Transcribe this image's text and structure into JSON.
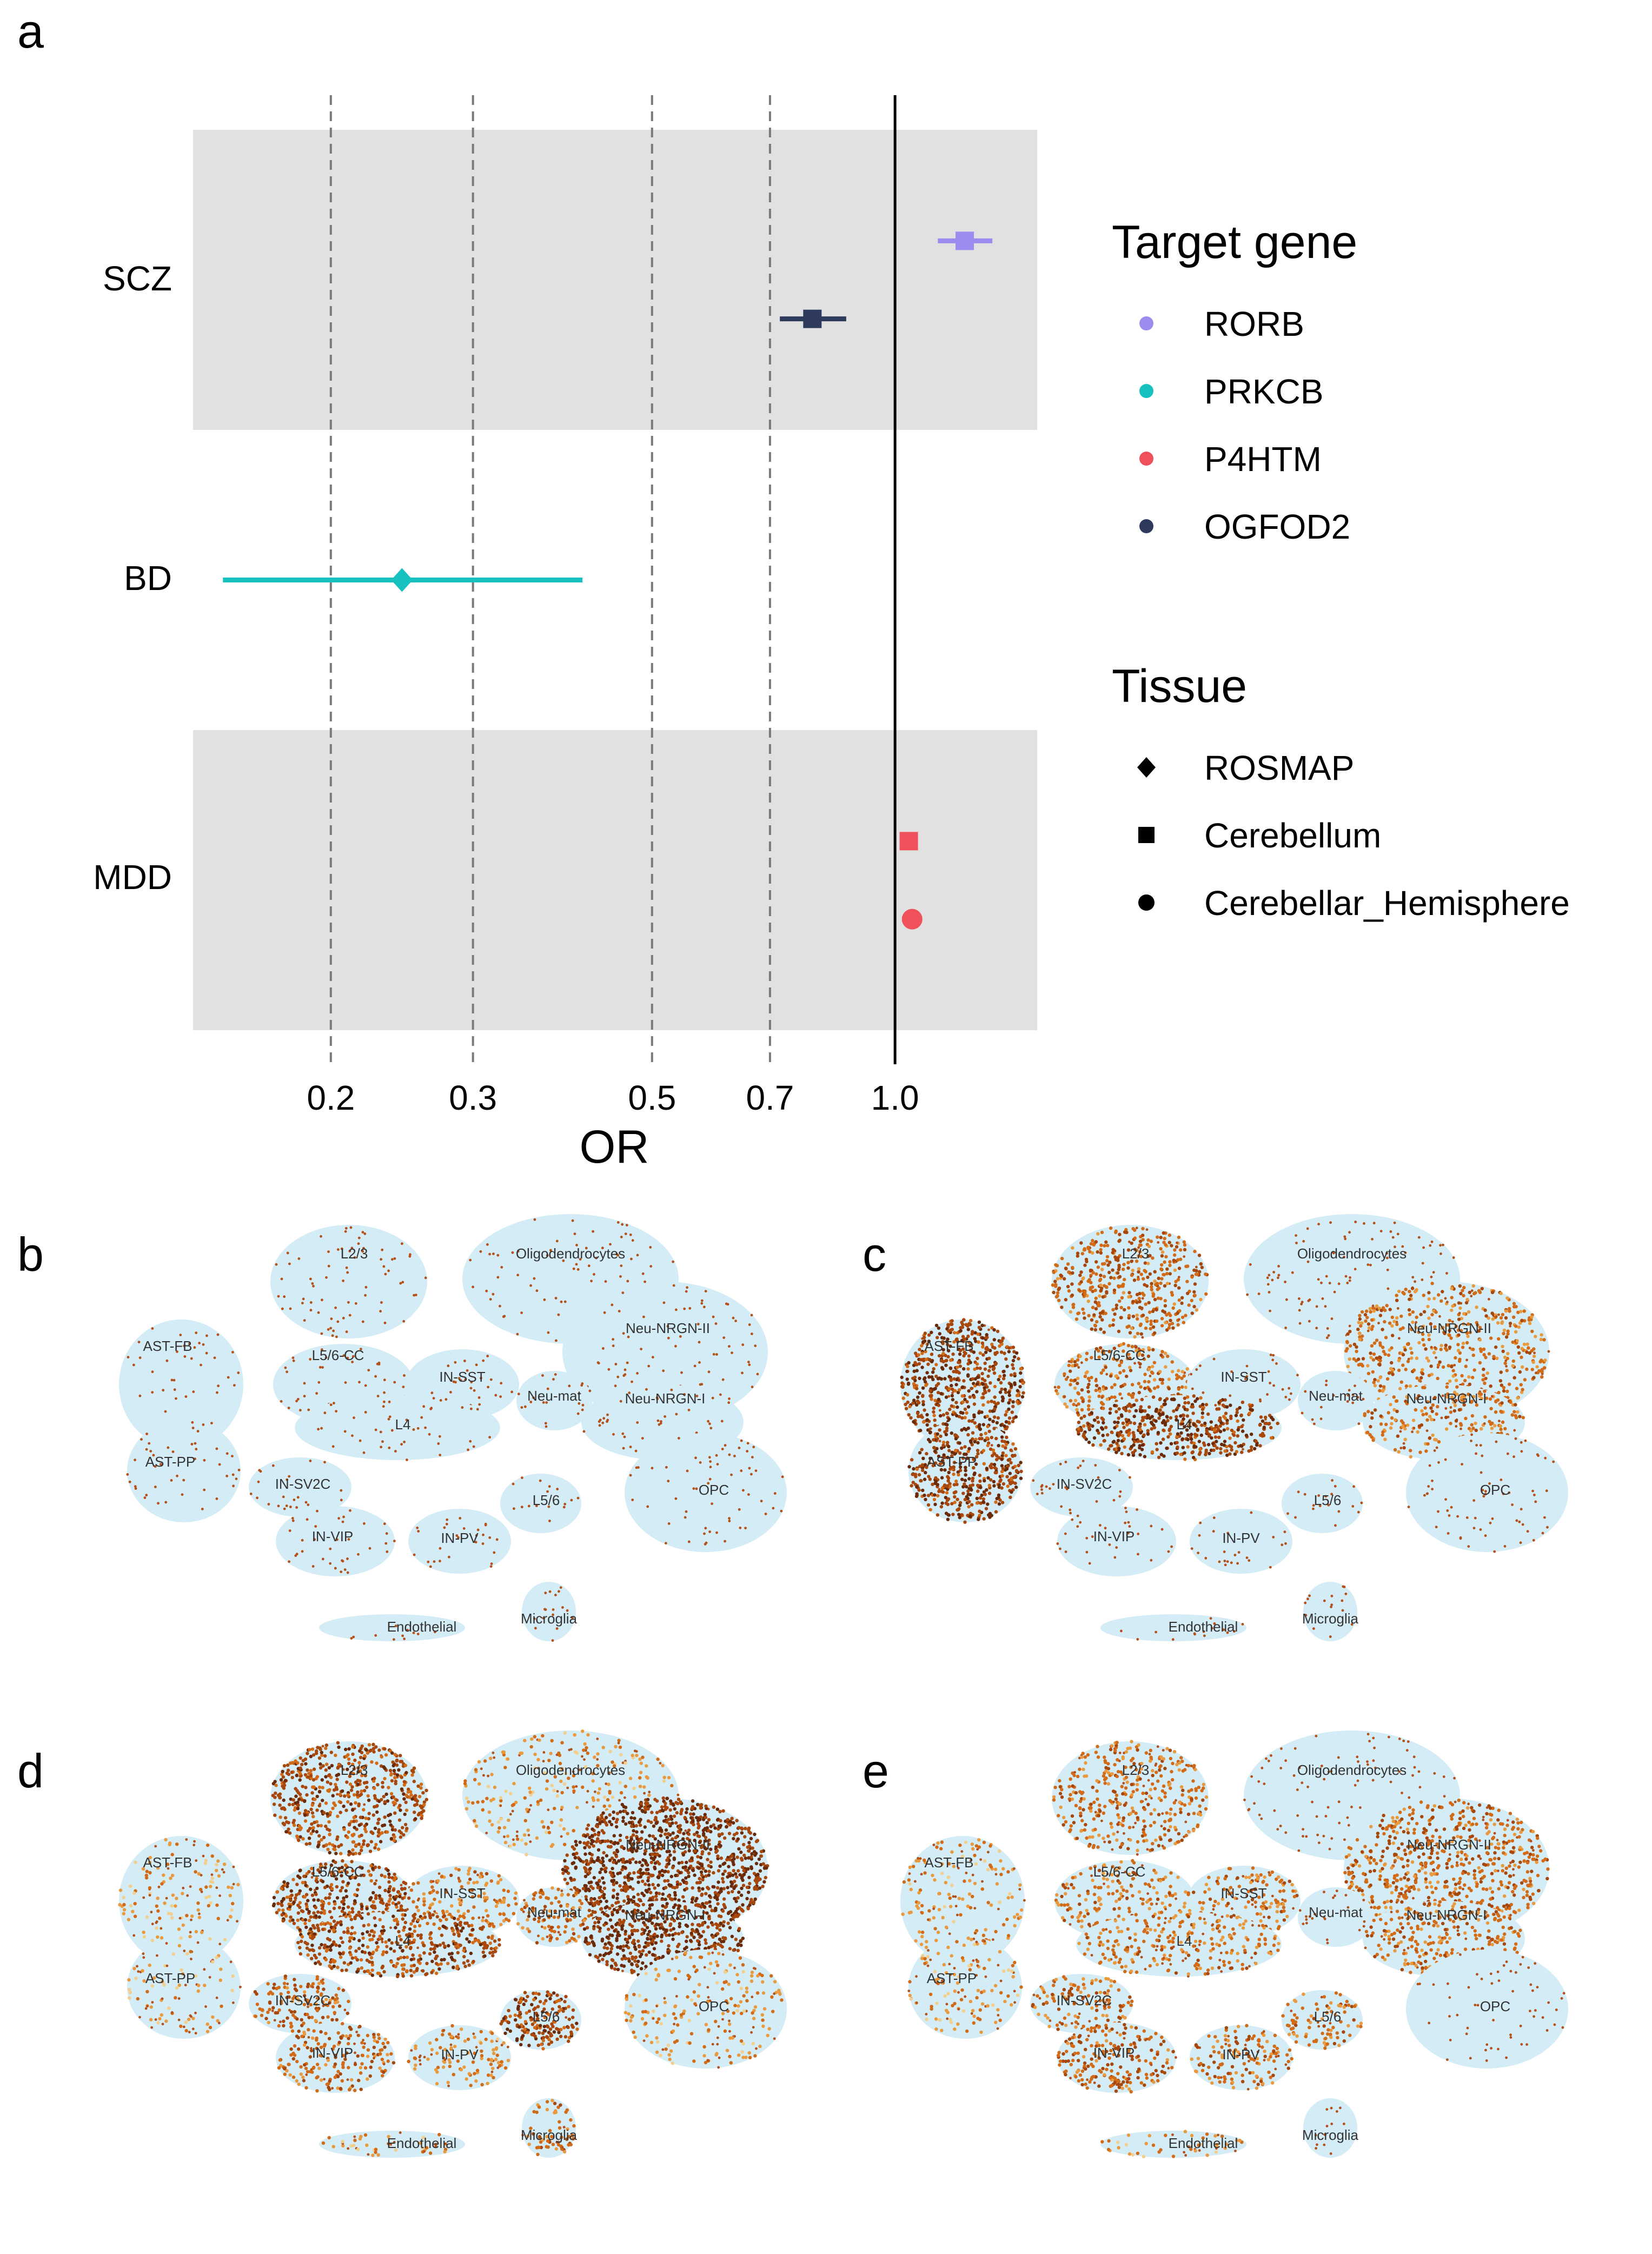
{
  "panel_labels": [
    "a",
    "b",
    "c",
    "d",
    "e"
  ],
  "chart_data": {
    "type": "forest",
    "xlabel": "OR",
    "x_scale": "log",
    "xlim": [
      0.135,
      1.5
    ],
    "x_ticks": [
      0.2,
      0.3,
      0.5,
      0.7,
      1.0
    ],
    "x_tick_labels": [
      "0.2",
      "0.3",
      "0.5",
      "0.7",
      "1.0"
    ],
    "reference_line": 1.0,
    "categories": [
      "SCZ",
      "BD",
      "MDD"
    ],
    "shaded_rows": [
      "SCZ",
      "MDD"
    ],
    "points": [
      {
        "disorder": "SCZ",
        "gene": "RORB",
        "tissue": "Cerebellum",
        "or": 1.22,
        "lo": 1.13,
        "hi": 1.32,
        "slot": 0
      },
      {
        "disorder": "SCZ",
        "gene": "OGFOD2",
        "tissue": "Cerebellum",
        "or": 0.79,
        "lo": 0.72,
        "hi": 0.87,
        "slot": 1
      },
      {
        "disorder": "BD",
        "gene": "PRKCB",
        "tissue": "ROSMAP",
        "or": 0.245,
        "lo": 0.147,
        "hi": 0.41,
        "slot": 0.5
      },
      {
        "disorder": "MDD",
        "gene": "P4HTM",
        "tissue": "Cerebellum",
        "or": 1.04,
        "lo": 1.02,
        "hi": 1.06,
        "slot": 0
      },
      {
        "disorder": "MDD",
        "gene": "P4HTM",
        "tissue": "Cerebellar_Hemisphere",
        "or": 1.05,
        "lo": 1.02,
        "hi": 1.08,
        "slot": 1
      }
    ],
    "legend": {
      "gene_title": "Target gene",
      "genes": [
        {
          "name": "RORB",
          "color": "#9B8CF0"
        },
        {
          "name": "PRKCB",
          "color": "#16C1C0"
        },
        {
          "name": "P4HTM",
          "color": "#F0505A"
        },
        {
          "name": "OGFOD2",
          "color": "#2D3A5C"
        }
      ],
      "tissue_title": "Tissue",
      "tissues": [
        {
          "name": "ROSMAP",
          "shape": "diamond"
        },
        {
          "name": "Cerebellum",
          "shape": "square"
        },
        {
          "name": "Cerebellar_Hemisphere",
          "shape": "circle"
        }
      ]
    }
  },
  "tsne_panels": {
    "clusters": [
      "L2/3",
      "Oligodendrocytes",
      "AST-FB",
      "L5/6-CC",
      "IN-SST",
      "Neu-NRGN-II",
      "Neu-mat",
      "Neu-NRGN-I",
      "L4",
      "AST-PP",
      "IN-SV2C",
      "OPC",
      "L5/6",
      "IN-VIP",
      "IN-PV",
      "Microglia",
      "Endothelial"
    ],
    "panels": [
      {
        "letter": "b",
        "expression": {}
      },
      {
        "letter": "c",
        "expression": {
          "AST-FB": 0.85,
          "AST-PP": 0.85,
          "L4": 0.85,
          "L2/3": 0.55,
          "L5/6-CC": 0.5,
          "Neu-NRGN-II": 0.45,
          "Neu-NRGN-I": 0.4
        }
      },
      {
        "letter": "d",
        "expression": {
          "L2/3": 0.75,
          "L5/6-CC": 0.8,
          "L4": 0.75,
          "Neu-NRGN-II": 0.95,
          "Neu-NRGN-I": 0.95,
          "L5/6": 0.8,
          "IN-SV2C": 0.55,
          "IN-VIP": 0.5,
          "Neu-mat": 0.5,
          "IN-SST": 0.35,
          "Microglia": 0.45,
          "IN-PV": 0.3,
          "Oligodendrocytes": 0.2,
          "OPC": 0.2,
          "AST-FB": 0.15,
          "AST-PP": 0.12,
          "Endothelial": 0.2
        }
      },
      {
        "letter": "e",
        "expression": {
          "L2/3": 0.45,
          "L5/6-CC": 0.4,
          "L4": 0.4,
          "IN-VIP": 0.55,
          "IN-PV": 0.45,
          "IN-SST": 0.4,
          "IN-SV2C": 0.45,
          "L5/6": 0.4,
          "Neu-NRGN-II": 0.5,
          "Neu-NRGN-I": 0.45,
          "AST-FB": 0.2,
          "AST-PP": 0.2,
          "Endothelial": 0.2
        }
      }
    ]
  }
}
